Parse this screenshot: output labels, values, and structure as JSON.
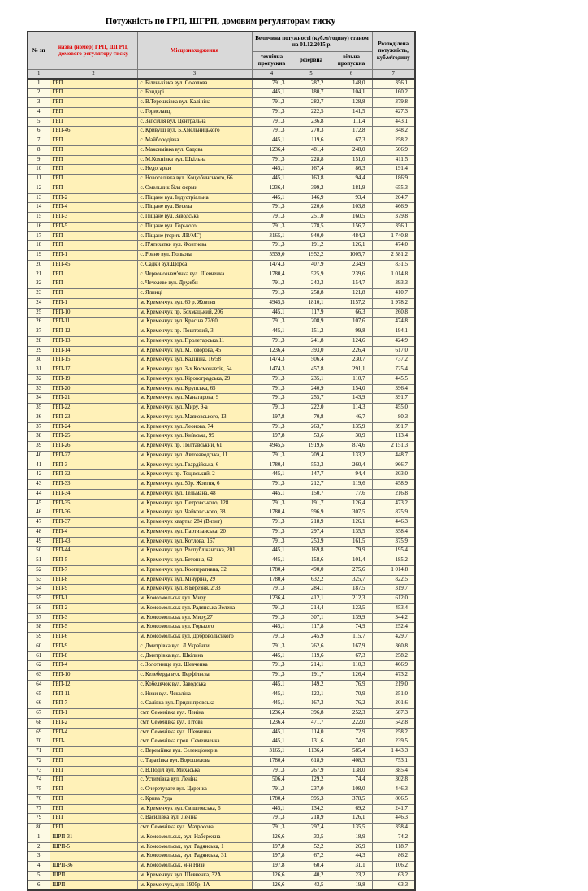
{
  "title": "Потужність по ГРП, ШГРП, домовим регуляторам тиску",
  "header": {
    "col_num": "№ зп",
    "col_name": "назва (номер) ГРП, ШГРП, домового регулятору тиску",
    "col_location": "Місцезнаходження",
    "col_capacity_group": "Величина потужності (куб.м/годину) станом на 01.12.2015 р.",
    "col_tech": "технічна пропускна",
    "col_reserve": "резервна",
    "col_free": "вільна пропускна",
    "col_distributed": "Розподілена потужність, куб.м/годину",
    "index_row": [
      "1",
      "2",
      "3",
      "4",
      "5",
      "6",
      "7"
    ]
  },
  "colors": {
    "header_bg": "#d9d9d9",
    "row_yellow": "#fff1b8",
    "row_cream": "#fdfae4",
    "label_red": "#e00000",
    "border": "#7a7a7a"
  },
  "rows": [
    [
      "1",
      "ГРП",
      "с. Біленьківка вул. Соколова",
      "791,3",
      "287,2",
      "148,0",
      "356,1"
    ],
    [
      "2",
      "ГРП",
      "с. Бондарі",
      "445,1",
      "180,7",
      "104,1",
      "160,2"
    ],
    [
      "3",
      "ГРП",
      "с. В.Терешківка вул. Калініна",
      "791,3",
      "282,7",
      "128,8",
      "379,8"
    ],
    [
      "4",
      "ГРП",
      "с. Гориславці",
      "791,3",
      "222,5",
      "141,5",
      "427,3"
    ],
    [
      "5",
      "ГРП",
      "с. Запсілля вул. Центральна",
      "791,3",
      "236,8",
      "111,4",
      "443,1"
    ],
    [
      "6",
      "ГРП-46",
      "с. Кривуші вул. Б.Хмельницького",
      "791,3",
      "270,3",
      "172,8",
      "348,2"
    ],
    [
      "7",
      "ГРП",
      "с. Майбородівка",
      "445,1",
      "119,6",
      "67,3",
      "258,2"
    ],
    [
      "8",
      "ГРП",
      "с. Максимівка вул. Садова",
      "1236,4",
      "481,4",
      "248,0",
      "506,9"
    ],
    [
      "9",
      "ГРП",
      "с. М.Кохнівка вул. Шкільна",
      "791,3",
      "228,8",
      "151,0",
      "411,5"
    ],
    [
      "10",
      "ГРП",
      "с. Недогарки",
      "445,1",
      "167,4",
      "86,3",
      "191,4"
    ],
    [
      "11",
      "ГРП",
      "с. Новоселівка вул. Коцюбинського, 66",
      "445,1",
      "163,8",
      "94,4",
      "186,9"
    ],
    [
      "12",
      "ГРП",
      "с. Омельник  біля ферми",
      "1236,4",
      "399,2",
      "181,9",
      "655,3"
    ],
    [
      "13",
      "ГРП-2",
      "с. Піщане вул. Індустріальна",
      "445,1",
      "146,9",
      "93,4",
      "204,7"
    ],
    [
      "14",
      "ГРП-4",
      "с. Піщане вул. Весела",
      "791,3",
      "220,6",
      "103,8",
      "466,9"
    ],
    [
      "15",
      "ГРП-3",
      "с. Піщане вул. Заводська",
      "791,3",
      "251,0",
      "160,5",
      "379,8"
    ],
    [
      "16",
      "ГРП-5",
      "с. Піщане вул. Горького",
      "791,3",
      "278,5",
      "156,7",
      "356,1"
    ],
    [
      "17",
      "ГРП",
      "с. Піщане (терит. ЛВ/МГ)",
      "3165,1",
      "940,0",
      "484,3",
      "1 740,8"
    ],
    [
      "18",
      "ГРП",
      "с. П'ятихатки вул. Жовтнева",
      "791,3",
      "191,2",
      "126,1",
      "474,0"
    ],
    [
      "19",
      "ГРП-1",
      "с. Ровно вул. Польова",
      "5539,0",
      "1952,2",
      "1005,7",
      "2 581,2"
    ],
    [
      "20",
      "ГРП-45",
      "с. Садки вул.Щорса",
      "1474,3",
      "407,9",
      "234,9",
      "831,5"
    ],
    [
      "21",
      "ГРП",
      "с. Червонознам'янка вул. Шевченка",
      "1780,4",
      "525,9",
      "239,6",
      "1 014,8"
    ],
    [
      "22",
      "ГРП",
      "с. Чечелеве вул. Дружби",
      "791,3",
      "243,3",
      "154,7",
      "393,3"
    ],
    [
      "23",
      "ГРП",
      "с. Ялинці",
      "791,3",
      "258,8",
      "121,8",
      "410,7"
    ],
    [
      "24",
      "ГРП-1",
      "м. Кременчук вул. 60 р. Жовтня",
      "4945,5",
      "1810,1",
      "1157,2",
      "1 978,2"
    ],
    [
      "25",
      "ГРП-10",
      "м. Кременчук пр. Бохмацький, 206",
      "445,1",
      "117,9",
      "66,3",
      "260,8"
    ],
    [
      "26",
      "ГРП-11",
      "м. Кременчук вул. Красіна 72/60",
      "791,3",
      "208,9",
      "107,6",
      "474,8"
    ],
    [
      "27",
      "ГРП-12",
      "м. Кременчук пр. Поштовий, 3",
      "445,1",
      "151,2",
      "99,8",
      "194,1"
    ],
    [
      "28",
      "ГРП-13",
      "м. Кременчук вул. Пролетарська,11",
      "791,3",
      "241,8",
      "124,6",
      "424,9"
    ],
    [
      "29",
      "ГРП-14",
      "м. Кременчук вул. М.Говорова, 45",
      "1236,4",
      "393,0",
      "226,4",
      "617,0"
    ],
    [
      "30",
      "ГРП-15",
      "м. Кременчук вул. Калініна, 16/58",
      "1474,3",
      "506,4",
      "230,7",
      "737,2"
    ],
    [
      "31",
      "ГРП-17",
      "м. Кременчук вул. 3-х Космонавтів, 54",
      "1474,3",
      "457,8",
      "291,1",
      "725,4"
    ],
    [
      "32",
      "ГРП-19",
      "м. Кременчук вул. Кіровоградська, 29",
      "791,3",
      "235,1",
      "110,7",
      "445,5"
    ],
    [
      "33",
      "ГРП-20",
      "м. Кременчук вул. Крупська, 65",
      "791,3",
      "240,9",
      "154,0",
      "396,4"
    ],
    [
      "34",
      "ГРП-21",
      "м. Кременчук вул. Манагарова, 9",
      "791,3",
      "255,7",
      "143,9",
      "391,7"
    ],
    [
      "35",
      "ГРП-22",
      "м. Кременчук вул. Миру, 9-а",
      "791,3",
      "222,0",
      "114,3",
      "455,0"
    ],
    [
      "36",
      "ГРП-23",
      "м. Кременчук вул. Маяковського, 13",
      "197,8",
      "70,8",
      "46,7",
      "80,3"
    ],
    [
      "37",
      "ГРП-24",
      "м. Кременчук вул. Леонова, 74",
      "791,3",
      "263,7",
      "135,9",
      "391,7"
    ],
    [
      "38",
      "ГРП-25",
      "м. Кременчук вул. Київська, 99",
      "197,8",
      "53,6",
      "30,9",
      "113,4"
    ],
    [
      "39",
      "ГРП-26",
      "м. Кременчук пр. Полтавський, 61",
      "4945,5",
      "1919,6",
      "874,6",
      "2 151,3"
    ],
    [
      "40",
      "ГРП-27",
      "м. Кременчук вул. Автозаводська, 11",
      "791,3",
      "209,4",
      "133,2",
      "448,7"
    ],
    [
      "41",
      "ГРП-3",
      "м. Кременчук вул. Гвардійська, 6",
      "1780,4",
      "553,3",
      "260,4",
      "966,7"
    ],
    [
      "42",
      "ГРП-32",
      "м. Кременчук пр. Тецівський, 2",
      "445,1",
      "147,7",
      "94,4",
      "203,0"
    ],
    [
      "43",
      "ГРП-33",
      "м. Кременчук вул. 50р. Жовтня, 6",
      "791,3",
      "212,7",
      "119,6",
      "458,9"
    ],
    [
      "44",
      "ГРП-34",
      "м. Кременчук вул. Тельмана, 48",
      "445,1",
      "150,7",
      "77,6",
      "216,8"
    ],
    [
      "45",
      "ГРП-35",
      "м. Кременчук вул. Петровського, 128",
      "791,3",
      "191,7",
      "126,4",
      "473,2"
    ],
    [
      "46",
      "ГРП-36",
      "м. Кременчук вул. Чайковського, 38",
      "1780,4",
      "596,9",
      "307,5",
      "875,9"
    ],
    [
      "47",
      "ГРП-37",
      "м. Кременчук квартал 284 (Визит)",
      "791,3",
      "218,9",
      "126,1",
      "446,3"
    ],
    [
      "48",
      "ГРП-4",
      "м. Кременчук вул. Партизанська, 20",
      "791,3",
      "297,4",
      "135,5",
      "358,4"
    ],
    [
      "49",
      "ГРП-43",
      "м. Кременчук вул. Котлова, 167",
      "791,3",
      "253,9",
      "161,5",
      "375,9"
    ],
    [
      "50",
      "ГРП-44",
      "м. Кременчук вул. Республіканська, 201",
      "445,1",
      "169,8",
      "79,9",
      "195,4"
    ],
    [
      "51",
      "ГРП-5",
      "м. Кременчук вул. Бетонна, 62",
      "445,1",
      "158,6",
      "101,4",
      "185,2"
    ],
    [
      "52",
      "ГРП-7",
      "м. Кременчук вул. Кооперативна, 32",
      "1780,4",
      "490,0",
      "275,6",
      "1 014,8"
    ],
    [
      "53",
      "ГРП-8",
      "м. Кременчук вул. Мічуріна, 29",
      "1780,4",
      "632,2",
      "325,7",
      "822,5"
    ],
    [
      "54",
      "ГРП-9",
      "м. Кременчук вул. 8 Березня, 2/33",
      "791,3",
      "284,1",
      "187,5",
      "319,7"
    ],
    [
      "55",
      "ГРП-1",
      "м. Комсомольськ вул. Миру",
      "1236,4",
      "412,1",
      "212,3",
      "612,0"
    ],
    [
      "56",
      "ГРП-2",
      "м. Комсомольськ вул. Радянська-Зелена",
      "791,3",
      "214,4",
      "123,5",
      "453,4"
    ],
    [
      "57",
      "ГРП-3",
      "м. Комсомольськ вул. Миру,27",
      "791,3",
      "307,1",
      "139,9",
      "344,2"
    ],
    [
      "58",
      "ГРП-5",
      "м. Комсомольськ вул. Горького",
      "445,1",
      "117,8",
      "74,9",
      "252,4"
    ],
    [
      "59",
      "ГРП-6",
      "м. Комсомольськ вул. Добровольського",
      "791,3",
      "245,9",
      "115,7",
      "429,7"
    ],
    [
      "60",
      "ГРП-9",
      "с. Дмитрівка вул. Л.Українки",
      "791,3",
      "262,6",
      "167,9",
      "360,8"
    ],
    [
      "61",
      "ГРП-8",
      "с. Дмитрівка вул. Шкільна",
      "445,1",
      "119,6",
      "67,3",
      "258,2"
    ],
    [
      "62",
      "ГРП-4",
      "с. Золотнище вул. Шевченка",
      "791,3",
      "214,1",
      "110,3",
      "466,9"
    ],
    [
      "63",
      "ГРП-10",
      "с. Келеберда вул. Перфільєва",
      "791,3",
      "191,7",
      "126,4",
      "473,2"
    ],
    [
      "64",
      "ГРП-12",
      "с. Кобелячок вул. Заводська",
      "445,1",
      "149,2",
      "76,9",
      "219,0"
    ],
    [
      "65",
      "ГРП-11",
      "с. Низи вул. Чекаліна",
      "445,1",
      "123,1",
      "70,9",
      "251,0"
    ],
    [
      "66",
      "ГРП-7",
      "с. Салівка вул. Придніпровська",
      "445,1",
      "167,3",
      "76,2",
      "201,6"
    ],
    [
      "67",
      "ГРП-1",
      "смт. Семенівка вул. Леніна",
      "1236,4",
      "396,8",
      "252,3",
      "587,3"
    ],
    [
      "68",
      "ГРП-2",
      "смт. Семенівка вул. Тітова",
      "1236,4",
      "471,7",
      "222,0",
      "542,8"
    ],
    [
      "69",
      "ГРП-4",
      "смт. Семенівка вул. Шевченка",
      "445,1",
      "114,0",
      "72,9",
      "258,2"
    ],
    [
      "70",
      "ГРП-",
      "смт. Семенівка пров. Семенченка",
      "445,1",
      "131,6",
      "74,0",
      "239,5"
    ],
    [
      "71",
      "ГРП",
      "с. Вереміївка вул. Селекціонерів",
      "3165,1",
      "1136,4",
      "585,4",
      "1 443,3"
    ],
    [
      "72",
      "ГРП",
      "с. Тарасівка вул. Ворошилова",
      "1780,4",
      "618,9",
      "408,3",
      "753,1"
    ],
    [
      "73",
      "ГРП",
      "с. В.Поділ вул. Михаська",
      "791,3",
      "267,9",
      "138,0",
      "385,4"
    ],
    [
      "74",
      "ГРП",
      "с. Устимівка вул. Леніна",
      "506,4",
      "129,2",
      "74,4",
      "302,8"
    ],
    [
      "75",
      "ГРП",
      "с. Очеретувате вул. Царенка",
      "791,3",
      "237,0",
      "108,0",
      "446,3"
    ],
    [
      "76",
      "ГРП",
      "с. Крива Руда",
      "1780,4",
      "595,3",
      "378,5",
      "806,5"
    ],
    [
      "77",
      "ГРП",
      "м. Кременчук вул. Свіштовська, 6",
      "445,1",
      "134,2",
      "69,2",
      "241,7"
    ],
    [
      "79",
      "ГРП",
      "с. Василівка вул. Леніна",
      "791,3",
      "218,9",
      "126,1",
      "446,3"
    ],
    [
      "80",
      "ГРП",
      "смт. Семенівка вул. Матросова",
      "791,3",
      "297,4",
      "135,5",
      "358,4"
    ],
    [
      "1",
      "ШРП-31",
      "м. Комсомольськ, вул. Набережна",
      "126,6",
      "33,5",
      "18,9",
      "74,2"
    ],
    [
      "2",
      "ШРП-5",
      "м. Комсомольськ, вул. Радянська, 1",
      "197,8",
      "52,2",
      "26,9",
      "118,7"
    ],
    [
      "3",
      "",
      "м. Комсомольськ, вул. Радянська, 31",
      "197,8",
      "67,2",
      "44,3",
      "86,2"
    ],
    [
      "4",
      "ШРП-36",
      "м. Комсомольськ, м-н Низи",
      "197,8",
      "60,4",
      "31,1",
      "106,2"
    ],
    [
      "5",
      "ШРП",
      "м. Кременчук вул. Шевченка, 32А",
      "126,6",
      "40,2",
      "23,2",
      "63,2"
    ],
    [
      "6",
      "ШРП",
      "м. Кременчук, вул. 1905р, 1А",
      "126,6",
      "43,5",
      "19,8",
      "63,3"
    ]
  ]
}
